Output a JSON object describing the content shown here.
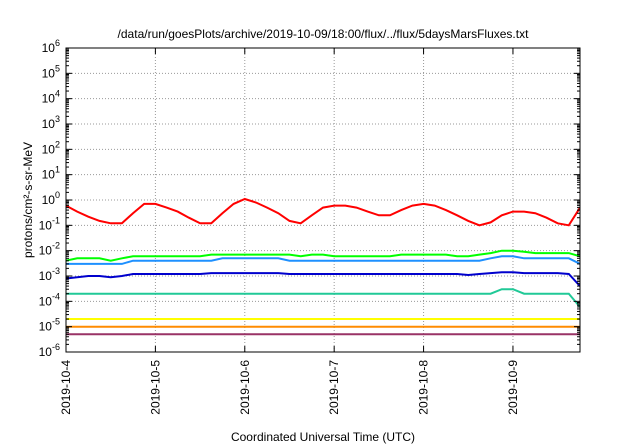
{
  "chart_data": {
    "type": "line",
    "title": "/data/run/goesPlots/archive/2019-10-09/18:00/flux/../flux/5daysMarsFluxes.txt",
    "xlabel": "Coordinated Universal Time (UTC)",
    "ylabel": "protons/cm²-s-sr-MeV",
    "yscale": "log",
    "ylim": [
      1e-06,
      1000000.0
    ],
    "xlim": [
      "2019-10-04",
      "2019-10-09 18:00"
    ],
    "grid": true,
    "y_ticks": [
      {
        "base": "10",
        "exp": "-6"
      },
      {
        "base": "10",
        "exp": "-5"
      },
      {
        "base": "10",
        "exp": "-4"
      },
      {
        "base": "10",
        "exp": "-3"
      },
      {
        "base": "10",
        "exp": "-2"
      },
      {
        "base": "10",
        "exp": "-1"
      },
      {
        "base": "10",
        "exp": "0"
      },
      {
        "base": "10",
        "exp": "1"
      },
      {
        "base": "10",
        "exp": "2"
      },
      {
        "base": "10",
        "exp": "3"
      },
      {
        "base": "10",
        "exp": "4"
      },
      {
        "base": "10",
        "exp": "5"
      },
      {
        "base": "10",
        "exp": "6"
      }
    ],
    "x_ticks": [
      "2019-10-4",
      "2019-10-5",
      "2019-10-6",
      "2019-10-7",
      "2019-10-8",
      "2019-10-9"
    ],
    "x_values": [
      "2019-10-04 00:00",
      "2019-10-04 03:00",
      "2019-10-04 06:00",
      "2019-10-04 09:00",
      "2019-10-04 12:00",
      "2019-10-04 15:00",
      "2019-10-04 18:00",
      "2019-10-04 21:00",
      "2019-10-05 00:00",
      "2019-10-05 03:00",
      "2019-10-05 06:00",
      "2019-10-05 09:00",
      "2019-10-05 12:00",
      "2019-10-05 15:00",
      "2019-10-05 18:00",
      "2019-10-05 21:00",
      "2019-10-06 00:00",
      "2019-10-06 03:00",
      "2019-10-06 06:00",
      "2019-10-06 09:00",
      "2019-10-06 12:00",
      "2019-10-06 15:00",
      "2019-10-06 18:00",
      "2019-10-06 21:00",
      "2019-10-07 00:00",
      "2019-10-07 03:00",
      "2019-10-07 06:00",
      "2019-10-07 09:00",
      "2019-10-07 12:00",
      "2019-10-07 15:00",
      "2019-10-07 18:00",
      "2019-10-07 21:00",
      "2019-10-08 00:00",
      "2019-10-08 03:00",
      "2019-10-08 06:00",
      "2019-10-08 09:00",
      "2019-10-08 12:00",
      "2019-10-08 15:00",
      "2019-10-08 18:00",
      "2019-10-08 21:00",
      "2019-10-09 00:00",
      "2019-10-09 03:00",
      "2019-10-09 06:00",
      "2019-10-09 09:00",
      "2019-10-09 12:00",
      "2019-10-09 15:00",
      "2019-10-09 18:00"
    ],
    "series": [
      {
        "color": "#ff0000",
        "values": [
          0.6,
          0.35,
          0.22,
          0.15,
          0.12,
          0.12,
          0.3,
          0.7,
          0.7,
          0.5,
          0.35,
          0.2,
          0.12,
          0.12,
          0.3,
          0.7,
          1.1,
          0.8,
          0.5,
          0.3,
          0.15,
          0.12,
          0.25,
          0.5,
          0.6,
          0.6,
          0.5,
          0.35,
          0.25,
          0.25,
          0.4,
          0.6,
          0.7,
          0.6,
          0.4,
          0.25,
          0.15,
          0.1,
          0.13,
          0.25,
          0.35,
          0.35,
          0.3,
          0.2,
          0.12,
          0.1,
          0.5
        ]
      },
      {
        "color": "#00ff00",
        "values": [
          0.004,
          0.005,
          0.005,
          0.005,
          0.004,
          0.005,
          0.006,
          0.006,
          0.006,
          0.006,
          0.006,
          0.006,
          0.006,
          0.007,
          0.007,
          0.007,
          0.007,
          0.007,
          0.007,
          0.007,
          0.007,
          0.006,
          0.007,
          0.007,
          0.006,
          0.006,
          0.006,
          0.006,
          0.006,
          0.006,
          0.007,
          0.007,
          0.007,
          0.007,
          0.007,
          0.006,
          0.006,
          0.007,
          0.008,
          0.01,
          0.01,
          0.009,
          0.008,
          0.008,
          0.008,
          0.008,
          0.006
        ]
      },
      {
        "color": "#1e90ff",
        "values": [
          0.003,
          0.003,
          0.003,
          0.003,
          0.003,
          0.003,
          0.004,
          0.004,
          0.004,
          0.004,
          0.004,
          0.004,
          0.004,
          0.004,
          0.005,
          0.005,
          0.005,
          0.005,
          0.005,
          0.005,
          0.004,
          0.004,
          0.004,
          0.004,
          0.004,
          0.004,
          0.004,
          0.004,
          0.004,
          0.004,
          0.004,
          0.004,
          0.004,
          0.004,
          0.004,
          0.004,
          0.004,
          0.004,
          0.005,
          0.006,
          0.006,
          0.005,
          0.005,
          0.005,
          0.005,
          0.005,
          0.003
        ]
      },
      {
        "color": "#0000cd",
        "values": [
          0.0008,
          0.0009,
          0.001,
          0.001,
          0.0009,
          0.001,
          0.0012,
          0.0012,
          0.0012,
          0.0012,
          0.0012,
          0.0012,
          0.0012,
          0.0013,
          0.0013,
          0.0013,
          0.0013,
          0.0013,
          0.0013,
          0.0013,
          0.0012,
          0.0012,
          0.0012,
          0.0012,
          0.0012,
          0.0012,
          0.0012,
          0.0012,
          0.0012,
          0.0012,
          0.0012,
          0.0012,
          0.0012,
          0.0012,
          0.0012,
          0.0012,
          0.0011,
          0.0012,
          0.0013,
          0.0014,
          0.0014,
          0.0013,
          0.0013,
          0.0013,
          0.0013,
          0.0012,
          0.0004
        ]
      },
      {
        "color": "#20c997",
        "values": [
          0.0002,
          0.0002,
          0.0002,
          0.0002,
          0.0002,
          0.0002,
          0.0002,
          0.0002,
          0.0002,
          0.0002,
          0.0002,
          0.0002,
          0.0002,
          0.0002,
          0.0002,
          0.0002,
          0.0002,
          0.0002,
          0.0002,
          0.0002,
          0.0002,
          0.0002,
          0.0002,
          0.0002,
          0.0002,
          0.0002,
          0.0002,
          0.0002,
          0.0002,
          0.0002,
          0.0002,
          0.0002,
          0.0002,
          0.0002,
          0.0002,
          0.0002,
          0.0002,
          0.0002,
          0.0002,
          0.0003,
          0.0003,
          0.0002,
          0.0002,
          0.0002,
          0.0002,
          0.0002,
          6e-05
        ]
      },
      {
        "color": "#ffff00",
        "values": [
          2e-05,
          2e-05,
          2e-05,
          2e-05,
          2e-05,
          2e-05,
          2e-05,
          2e-05,
          2e-05,
          2e-05,
          2e-05,
          2e-05,
          2e-05,
          2e-05,
          2e-05,
          2e-05,
          2e-05,
          2e-05,
          2e-05,
          2e-05,
          2e-05,
          2e-05,
          2e-05,
          2e-05,
          2e-05,
          2e-05,
          2e-05,
          2e-05,
          2e-05,
          2e-05,
          2e-05,
          2e-05,
          2e-05,
          2e-05,
          2e-05,
          2e-05,
          2e-05,
          2e-05,
          2e-05,
          2e-05,
          2e-05,
          2e-05,
          2e-05,
          2e-05,
          2e-05,
          2e-05,
          2e-05
        ]
      },
      {
        "color": "#ff8c00",
        "values": [
          1e-05,
          1e-05,
          1e-05,
          1e-05,
          1e-05,
          1e-05,
          1e-05,
          1e-05,
          1e-05,
          1e-05,
          1e-05,
          1e-05,
          1e-05,
          1e-05,
          1e-05,
          1e-05,
          1e-05,
          1e-05,
          1e-05,
          1e-05,
          1e-05,
          1e-05,
          1e-05,
          1e-05,
          1e-05,
          1e-05,
          1e-05,
          1e-05,
          1e-05,
          1e-05,
          1e-05,
          1e-05,
          1e-05,
          1e-05,
          1e-05,
          1e-05,
          1e-05,
          1e-05,
          1e-05,
          1e-05,
          1e-05,
          1e-05,
          1e-05,
          1e-05,
          1e-05,
          1e-05,
          1e-05
        ]
      },
      {
        "color": "#993366",
        "values": [
          5e-06,
          5e-06,
          5e-06,
          5e-06,
          5e-06,
          5e-06,
          5e-06,
          5e-06,
          5e-06,
          5e-06,
          5e-06,
          5e-06,
          5e-06,
          5e-06,
          5e-06,
          5e-06,
          5e-06,
          5e-06,
          5e-06,
          5e-06,
          5e-06,
          5e-06,
          5e-06,
          5e-06,
          5e-06,
          5e-06,
          5e-06,
          5e-06,
          5e-06,
          5e-06,
          5e-06,
          5e-06,
          5e-06,
          5e-06,
          5e-06,
          5e-06,
          5e-06,
          5e-06,
          5e-06,
          5e-06,
          5e-06,
          5e-06,
          5e-06,
          5e-06,
          5e-06,
          5e-06,
          5e-06
        ]
      }
    ]
  }
}
